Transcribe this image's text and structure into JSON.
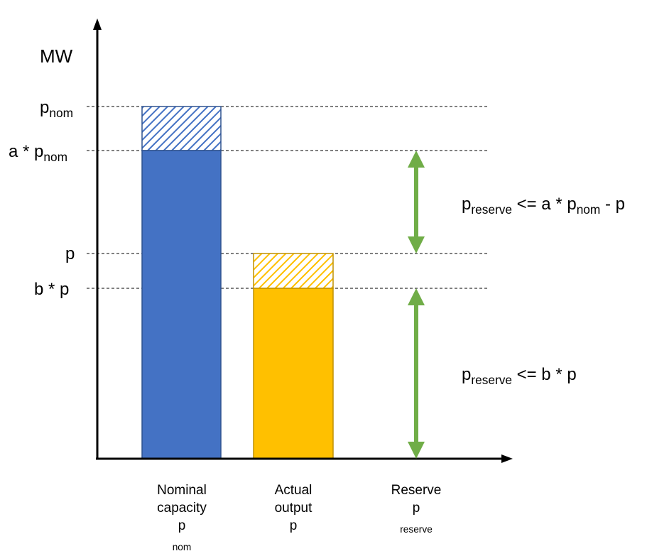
{
  "axis": {
    "ylabel": "MW"
  },
  "levels": {
    "pnom": {
      "main": "p",
      "sub": "nom"
    },
    "apnom": {
      "main": "a * p",
      "sub": "nom"
    },
    "p": {
      "main": "p"
    },
    "bp": {
      "main": "b * p"
    }
  },
  "constraints": {
    "upper": {
      "p1": "p",
      "sub1": "reserve",
      "p2": " <= a * p",
      "sub2": "nom",
      "p3": " - p"
    },
    "lower": {
      "p1": "p",
      "sub1": "reserve",
      "p2": " <= b * p"
    }
  },
  "categories": {
    "nominal": {
      "line1": "Nominal",
      "line2": "capacity",
      "line3": "p",
      "line3sub": "nom"
    },
    "actual": {
      "line1": "Actual",
      "line2": "output",
      "line3": "p"
    },
    "reserve": {
      "line1": "Reserve",
      "line2": "p",
      "line2sub": "reserve"
    }
  },
  "colors": {
    "nominal_bar": "#4472C4",
    "actual_bar": "#FFC000",
    "arrow": "#70AD47",
    "axis": "#000000"
  }
}
